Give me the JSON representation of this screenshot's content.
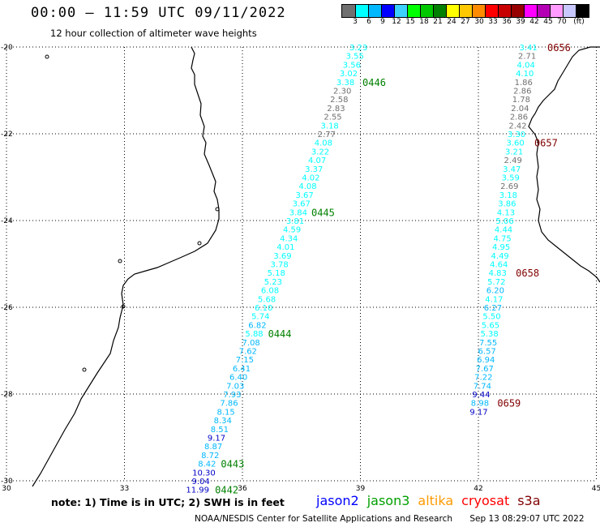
{
  "header": {
    "title": "00:00 – 11:59 UTC 09/11/2022",
    "subtitle": "12 hour collection of altimeter wave heights"
  },
  "color_scale": {
    "colors": [
      "#707070",
      "#00ffff",
      "#00b8ff",
      "#0000ff",
      "#3cd0ff",
      "#00ff00",
      "#00c800",
      "#008000",
      "#ffff00",
      "#ffc800",
      "#ff8c00",
      "#ff0000",
      "#c80000",
      "#960000",
      "#ff00ff",
      "#b400b4",
      "#ff9bff",
      "#c8c8ff",
      "#000000"
    ],
    "labels": [
      "3",
      "6",
      "9",
      "12",
      "15",
      "18",
      "21",
      "24",
      "27",
      "30",
      "33",
      "36",
      "39",
      "42",
      "45",
      "70",
      "(ft)"
    ]
  },
  "axes": {
    "lon_ticks": [
      "30",
      "33",
      "36",
      "39",
      "42",
      "45"
    ],
    "lat_ticks": [
      "-20",
      "-22",
      "-24",
      "-26",
      "-28",
      "-30"
    ]
  },
  "tracks": [
    {
      "name": "west",
      "label_color": "#00ffff",
      "points": [
        {
          "lat": -20.0,
          "lon": 38.95,
          "v": "3.23",
          "c": "#00ffff"
        },
        {
          "lat": -20.2,
          "lon": 38.86,
          "v": "3.55",
          "c": "#00ffff"
        },
        {
          "lat": -20.4,
          "lon": 38.78,
          "v": "3.56",
          "c": "#00ffff"
        },
        {
          "lat": -20.6,
          "lon": 38.7,
          "v": "3.02",
          "c": "#00ffff"
        },
        {
          "lat": -20.8,
          "lon": 38.62,
          "v": "3.38",
          "c": "#00ffff"
        },
        {
          "lat": -21.0,
          "lon": 38.54,
          "v": "2.30",
          "c": "#707070"
        },
        {
          "lat": -21.2,
          "lon": 38.46,
          "v": "2.58",
          "c": "#707070"
        },
        {
          "lat": -21.4,
          "lon": 38.38,
          "v": "2.83",
          "c": "#707070"
        },
        {
          "lat": -21.6,
          "lon": 38.3,
          "v": "2.55",
          "c": "#707070"
        },
        {
          "lat": -21.8,
          "lon": 38.22,
          "v": "3.18",
          "c": "#00ffff"
        },
        {
          "lat": -22.0,
          "lon": 38.14,
          "v": "2.77",
          "c": "#707070"
        },
        {
          "lat": -22.2,
          "lon": 38.06,
          "v": "4.08",
          "c": "#00ffff"
        },
        {
          "lat": -22.4,
          "lon": 37.98,
          "v": "3.22",
          "c": "#00ffff"
        },
        {
          "lat": -22.6,
          "lon": 37.9,
          "v": "4.07",
          "c": "#00ffff"
        },
        {
          "lat": -22.8,
          "lon": 37.82,
          "v": "3.37",
          "c": "#00ffff"
        },
        {
          "lat": -23.0,
          "lon": 37.74,
          "v": "4.02",
          "c": "#00ffff"
        },
        {
          "lat": -23.2,
          "lon": 37.66,
          "v": "4.08",
          "c": "#00ffff"
        },
        {
          "lat": -23.4,
          "lon": 37.58,
          "v": "3.67",
          "c": "#00ffff"
        },
        {
          "lat": -23.6,
          "lon": 37.5,
          "v": "3.67",
          "c": "#00ffff"
        },
        {
          "lat": -23.8,
          "lon": 37.42,
          "v": "3.84",
          "c": "#00ffff"
        },
        {
          "lat": -24.0,
          "lon": 37.34,
          "v": "3.81",
          "c": "#00ffff"
        },
        {
          "lat": -24.2,
          "lon": 37.26,
          "v": "4.59",
          "c": "#00ffff"
        },
        {
          "lat": -24.4,
          "lon": 37.18,
          "v": "4.34",
          "c": "#00ffff"
        },
        {
          "lat": -24.6,
          "lon": 37.1,
          "v": "4.01",
          "c": "#00ffff"
        },
        {
          "lat": -24.8,
          "lon": 37.02,
          "v": "3.69",
          "c": "#00ffff"
        },
        {
          "lat": -25.0,
          "lon": 36.94,
          "v": "3.78",
          "c": "#00ffff"
        },
        {
          "lat": -25.2,
          "lon": 36.86,
          "v": "5.18",
          "c": "#00ffff"
        },
        {
          "lat": -25.4,
          "lon": 36.78,
          "v": "5.23",
          "c": "#00ffff"
        },
        {
          "lat": -25.6,
          "lon": 36.7,
          "v": "6.08",
          "c": "#00ffff"
        },
        {
          "lat": -25.8,
          "lon": 36.62,
          "v": "5.68",
          "c": "#00ffff"
        },
        {
          "lat": -26.0,
          "lon": 36.54,
          "v": "6.10",
          "c": "#00ffff"
        },
        {
          "lat": -26.2,
          "lon": 36.46,
          "v": "5.74",
          "c": "#00ffff"
        },
        {
          "lat": -26.4,
          "lon": 36.38,
          "v": "6.82",
          "c": "#00b8ff"
        },
        {
          "lat": -26.6,
          "lon": 36.3,
          "v": "5.88",
          "c": "#00ffff"
        },
        {
          "lat": -26.8,
          "lon": 36.22,
          "v": "7.08",
          "c": "#00b8ff"
        },
        {
          "lat": -27.0,
          "lon": 36.14,
          "v": "7.62",
          "c": "#00b8ff"
        },
        {
          "lat": -27.2,
          "lon": 36.06,
          "v": "7.15",
          "c": "#00b8ff"
        },
        {
          "lat": -27.4,
          "lon": 35.98,
          "v": "6.41",
          "c": "#00b8ff"
        },
        {
          "lat": -27.6,
          "lon": 35.9,
          "v": "6.40",
          "c": "#00b8ff"
        },
        {
          "lat": -27.8,
          "lon": 35.82,
          "v": "7.03",
          "c": "#00b8ff"
        },
        {
          "lat": -28.0,
          "lon": 35.74,
          "v": "7.93",
          "c": "#00b8ff"
        },
        {
          "lat": -28.2,
          "lon": 35.66,
          "v": "7.86",
          "c": "#00b8ff"
        },
        {
          "lat": -28.4,
          "lon": 35.58,
          "v": "8.15",
          "c": "#00b8ff"
        },
        {
          "lat": -28.6,
          "lon": 35.5,
          "v": "8.34",
          "c": "#00b8ff"
        },
        {
          "lat": -28.8,
          "lon": 35.42,
          "v": "8.51",
          "c": "#00b8ff"
        },
        {
          "lat": -29.0,
          "lon": 35.34,
          "v": "9.17",
          "c": "#0000c8"
        },
        {
          "lat": -29.2,
          "lon": 35.26,
          "v": "8.87",
          "c": "#00b8ff"
        },
        {
          "lat": -29.4,
          "lon": 35.18,
          "v": "8.72",
          "c": "#00b8ff"
        },
        {
          "lat": -29.6,
          "lon": 35.1,
          "v": "8.42",
          "c": "#00b8ff"
        },
        {
          "lat": -29.8,
          "lon": 35.02,
          "v": "10.30",
          "c": "#0000c8"
        },
        {
          "lat": -30.0,
          "lon": 34.94,
          "v": "9.04",
          "c": "#0000c8"
        },
        {
          "lat": -30.2,
          "lon": 34.86,
          "v": "11.99",
          "c": "#0000c8"
        }
      ]
    },
    {
      "name": "east",
      "points": [
        {
          "lat": -20.0,
          "lon": 43.27,
          "v": "3.41",
          "c": "#00ffff"
        },
        {
          "lat": -20.2,
          "lon": 43.24,
          "v": "2.71",
          "c": "#707070"
        },
        {
          "lat": -20.4,
          "lon": 43.21,
          "v": "4.04",
          "c": "#00ffff"
        },
        {
          "lat": -20.6,
          "lon": 43.18,
          "v": "4.10",
          "c": "#00ffff"
        },
        {
          "lat": -20.8,
          "lon": 43.15,
          "v": "1.86",
          "c": "#707070"
        },
        {
          "lat": -21.0,
          "lon": 43.12,
          "v": "2.86",
          "c": "#707070"
        },
        {
          "lat": -21.2,
          "lon": 43.09,
          "v": "1.78",
          "c": "#707070"
        },
        {
          "lat": -21.4,
          "lon": 43.06,
          "v": "2.04",
          "c": "#707070"
        },
        {
          "lat": -21.6,
          "lon": 43.03,
          "v": "2.86",
          "c": "#707070"
        },
        {
          "lat": -21.8,
          "lon": 43.0,
          "v": "2.42",
          "c": "#707070"
        },
        {
          "lat": -22.0,
          "lon": 42.97,
          "v": "3.30",
          "c": "#00ffff"
        },
        {
          "lat": -22.2,
          "lon": 42.94,
          "v": "3.60",
          "c": "#00ffff"
        },
        {
          "lat": -22.4,
          "lon": 42.91,
          "v": "3.21",
          "c": "#00ffff"
        },
        {
          "lat": -22.6,
          "lon": 42.88,
          "v": "2.49",
          "c": "#707070"
        },
        {
          "lat": -22.8,
          "lon": 42.85,
          "v": "3.47",
          "c": "#00ffff"
        },
        {
          "lat": -23.0,
          "lon": 42.82,
          "v": "3.59",
          "c": "#00ffff"
        },
        {
          "lat": -23.2,
          "lon": 42.79,
          "v": "2.69",
          "c": "#707070"
        },
        {
          "lat": -23.4,
          "lon": 42.76,
          "v": "3.18",
          "c": "#00ffff"
        },
        {
          "lat": -23.6,
          "lon": 42.73,
          "v": "3.86",
          "c": "#00ffff"
        },
        {
          "lat": -23.8,
          "lon": 42.7,
          "v": "4.13",
          "c": "#00ffff"
        },
        {
          "lat": -24.0,
          "lon": 42.67,
          "v": "5.06",
          "c": "#00ffff"
        },
        {
          "lat": -24.2,
          "lon": 42.64,
          "v": "4.44",
          "c": "#00ffff"
        },
        {
          "lat": -24.4,
          "lon": 42.61,
          "v": "4.75",
          "c": "#00ffff"
        },
        {
          "lat": -24.6,
          "lon": 42.58,
          "v": "4.95",
          "c": "#00ffff"
        },
        {
          "lat": -24.8,
          "lon": 42.55,
          "v": "4.49",
          "c": "#00ffff"
        },
        {
          "lat": -25.0,
          "lon": 42.52,
          "v": "4.64",
          "c": "#00ffff"
        },
        {
          "lat": -25.2,
          "lon": 42.49,
          "v": "4.83",
          "c": "#00ffff"
        },
        {
          "lat": -25.4,
          "lon": 42.46,
          "v": "5.72",
          "c": "#00ffff"
        },
        {
          "lat": -25.6,
          "lon": 42.43,
          "v": "6.20",
          "c": "#00b8ff"
        },
        {
          "lat": -25.8,
          "lon": 42.4,
          "v": "4.17",
          "c": "#00ffff"
        },
        {
          "lat": -26.0,
          "lon": 42.37,
          "v": "6.27",
          "c": "#00b8ff"
        },
        {
          "lat": -26.2,
          "lon": 42.34,
          "v": "5.50",
          "c": "#00ffff"
        },
        {
          "lat": -26.4,
          "lon": 42.31,
          "v": "5.65",
          "c": "#00ffff"
        },
        {
          "lat": -26.6,
          "lon": 42.28,
          "v": "5.38",
          "c": "#00ffff"
        },
        {
          "lat": -26.8,
          "lon": 42.25,
          "v": "7.55",
          "c": "#00b8ff"
        },
        {
          "lat": -27.0,
          "lon": 42.22,
          "v": "6.57",
          "c": "#00b8ff"
        },
        {
          "lat": -27.2,
          "lon": 42.19,
          "v": "6.94",
          "c": "#00b8ff"
        },
        {
          "lat": -27.4,
          "lon": 42.16,
          "v": "7.67",
          "c": "#00b8ff"
        },
        {
          "lat": -27.6,
          "lon": 42.13,
          "v": "7.22",
          "c": "#00b8ff"
        },
        {
          "lat": -27.8,
          "lon": 42.1,
          "v": "7.74",
          "c": "#00b8ff"
        },
        {
          "lat": -28.0,
          "lon": 42.07,
          "v": "9.44",
          "c": "#0000c8"
        },
        {
          "lat": -28.2,
          "lon": 42.04,
          "v": "8.98",
          "c": "#00b8ff"
        },
        {
          "lat": -28.4,
          "lon": 42.01,
          "v": "9.17",
          "c": "#0000c8"
        }
      ]
    }
  ],
  "time_labels": [
    {
      "text": "0446",
      "lat": -20.8,
      "lon": 39.35,
      "c": "#008000"
    },
    {
      "text": "0445",
      "lat": -23.8,
      "lon": 38.05,
      "c": "#008000"
    },
    {
      "text": "0444",
      "lat": -26.6,
      "lon": 36.95,
      "c": "#008000"
    },
    {
      "text": "0443",
      "lat": -29.6,
      "lon": 35.75,
      "c": "#008000"
    },
    {
      "text": "0442",
      "lat": -30.2,
      "lon": 35.6,
      "c": "#008000"
    },
    {
      "text": "0656",
      "lat": -20.0,
      "lon": 44.05,
      "c": "#800000"
    },
    {
      "text": "0657",
      "lat": -22.2,
      "lon": 43.72,
      "c": "#800000"
    },
    {
      "text": "0658",
      "lat": -25.2,
      "lon": 43.25,
      "c": "#800000"
    },
    {
      "text": "0659",
      "lat": -28.2,
      "lon": 42.78,
      "c": "#800000"
    }
  ],
  "footer": {
    "note": "note: 1) Time is in UTC; 2) SWH is in feet",
    "satellites": [
      {
        "name": "jason2",
        "color": "#0000ff"
      },
      {
        "name": "jason3",
        "color": "#00a000"
      },
      {
        "name": "altika",
        "color": "#ff9900"
      },
      {
        "name": "cryosat",
        "color": "#ff0000"
      },
      {
        "name": "s3a",
        "color": "#800000"
      }
    ],
    "credit": "NOAA/NESDIS Center for Satellite Applications and Research",
    "timestamp": "Sep 13 08:29:07 UTC 2022"
  }
}
